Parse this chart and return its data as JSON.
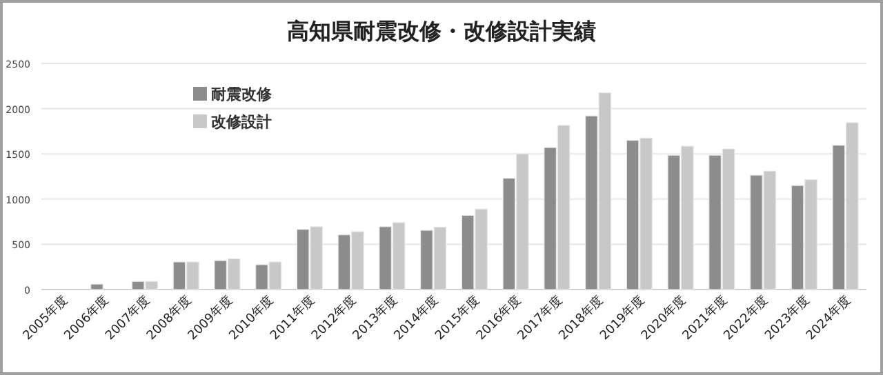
{
  "chart_data": {
    "type": "bar",
    "title": "高知県耐震改修・改修設計実績",
    "categories": [
      "2005年度",
      "2006年度",
      "2007年度",
      "2008年度",
      "2009年度",
      "2010年度",
      "2011年度",
      "2012年度",
      "2013年度",
      "2014年度",
      "2015年度",
      "2016年度",
      "2017年度",
      "2018年度",
      "2019年度",
      "2020年度",
      "2021年度",
      "2022年度",
      "2023年度",
      "2024年度"
    ],
    "series": [
      {
        "name": "耐震改修",
        "color": "#8c8c8c",
        "values": [
          0,
          60,
          90,
          305,
          320,
          275,
          665,
          605,
          695,
          655,
          820,
          1230,
          1570,
          1920,
          1650,
          1485,
          1485,
          1265,
          1150,
          1595
        ]
      },
      {
        "name": "改修設計",
        "color": "#c8c8c8",
        "values": [
          0,
          0,
          90,
          305,
          340,
          305,
          695,
          640,
          740,
          690,
          890,
          1500,
          1815,
          2175,
          1675,
          1585,
          1555,
          1310,
          1215,
          1845
        ]
      }
    ],
    "ylim": [
      0,
      2500
    ],
    "yticks": [
      0,
      500,
      1000,
      1500,
      2000,
      2500
    ],
    "grid": "y",
    "legend": "top left"
  }
}
